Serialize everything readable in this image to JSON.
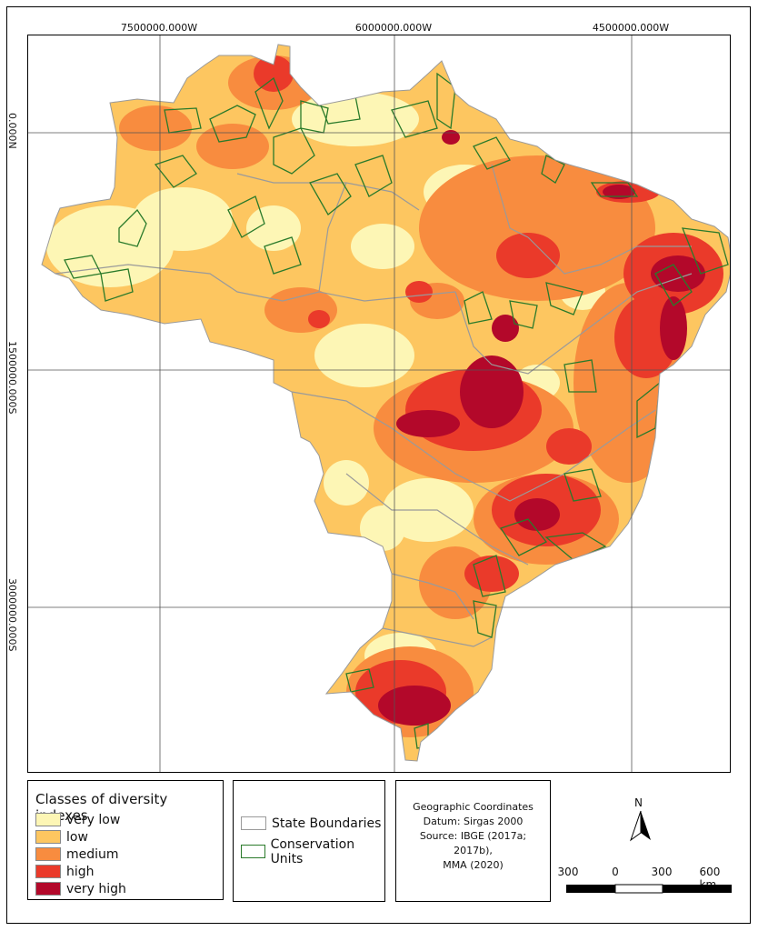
{
  "map": {
    "grid_labels_top": [
      "7500000.000W",
      "6000000.000W",
      "4500000.000W"
    ],
    "grid_labels_left": [
      "0.000N",
      "1500000.000S",
      "3000000.000S"
    ]
  },
  "legend_classes": {
    "title": "Classes of diversity indexes",
    "items": [
      {
        "label": "very low",
        "color": "#fdf6b5"
      },
      {
        "label": "low",
        "color": "#fdc660"
      },
      {
        "label": "medium",
        "color": "#f88c3f"
      },
      {
        "label": "high",
        "color": "#ea3a2a"
      },
      {
        "label": "very high",
        "color": "#b3082a"
      }
    ]
  },
  "legend_layers": {
    "items": [
      {
        "label": "State Boundaries",
        "color": "#9a9a9a"
      },
      {
        "label": "Conservation Units",
        "color": "#2a7a2a"
      }
    ]
  },
  "source_note": {
    "lines": [
      "Geographic Coordinates",
      "Datum: Sirgas 2000",
      "Source: IBGE (2017a;",
      "2017b),",
      "MMA (2020)"
    ]
  },
  "north_arrow": {
    "label": "N"
  },
  "scale_bar": {
    "labels": [
      "300",
      "0",
      "300",
      "600 km"
    ]
  }
}
